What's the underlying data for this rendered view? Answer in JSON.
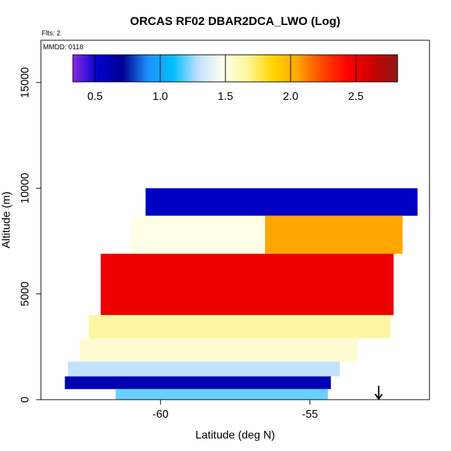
{
  "chart_data": {
    "type": "heatmap",
    "title": "ORCAS RF02 DBAR2DCA_LWO (Log)",
    "flts_note": "Flts: 2",
    "mmdd_note": "MMDD: 0118",
    "xlabel": "Latitude (deg N)",
    "ylabel": "Altitude (m)",
    "xlim": [
      -64,
      -51
    ],
    "ylim": [
      0,
      17000
    ],
    "x_ticks": [
      -60,
      -55
    ],
    "x_tick_labels": [
      "-60",
      "-55"
    ],
    "y_ticks": [
      0,
      5000,
      10000,
      15000
    ],
    "y_tick_labels": [
      "0",
      "5000",
      "10000",
      "15000"
    ],
    "colorbar": {
      "range": [
        0.33,
        2.82
      ],
      "ticks": [
        0.5,
        1.0,
        1.5,
        2.0,
        2.5
      ],
      "tick_labels": [
        "0.5",
        "1.0",
        "1.5",
        "2.0",
        "2.5"
      ],
      "colors": [
        "#8a2be2",
        "#0000cd",
        "#000090",
        "#1e90ff",
        "#00bfff",
        "#bfe0ff",
        "#fffff0",
        "#fff59a",
        "#ffd700",
        "#ffa500",
        "#ff4500",
        "#ff0000",
        "#cc0000",
        "#8b1a1a"
      ]
    },
    "marker_latitude": -52.7,
    "bands": [
      {
        "alt_range": [
          8700,
          10000
        ],
        "lat_range": [
          -60.5,
          -51.4
        ],
        "value": 0.55
      },
      {
        "alt_range": [
          6900,
          8700
        ],
        "lat_range": [
          -61.0,
          -51.9
        ],
        "value": 1.5
      },
      {
        "alt_range": [
          6900,
          8700
        ],
        "lat_range": [
          -56.5,
          -51.9
        ],
        "value": 2.05
      },
      {
        "alt_range": [
          4000,
          6900
        ],
        "lat_range": [
          -62.0,
          -52.2
        ],
        "value": 2.5
      },
      {
        "alt_range": [
          2900,
          4000
        ],
        "lat_range": [
          -62.4,
          -52.3
        ],
        "value": 1.65
      },
      {
        "alt_range": [
          1800,
          2900
        ],
        "lat_range": [
          -62.7,
          -53.4
        ],
        "value": 1.55
      },
      {
        "alt_range": [
          1100,
          1800
        ],
        "lat_range": [
          -63.1,
          -54.0
        ],
        "value": 1.3
      },
      {
        "alt_range": [
          500,
          1100
        ],
        "lat_range": [
          -63.2,
          -54.3
        ],
        "value": 0.6
      },
      {
        "alt_range": [
          0,
          500
        ],
        "lat_range": [
          -61.5,
          -54.4
        ],
        "value": 1.2
      }
    ]
  }
}
